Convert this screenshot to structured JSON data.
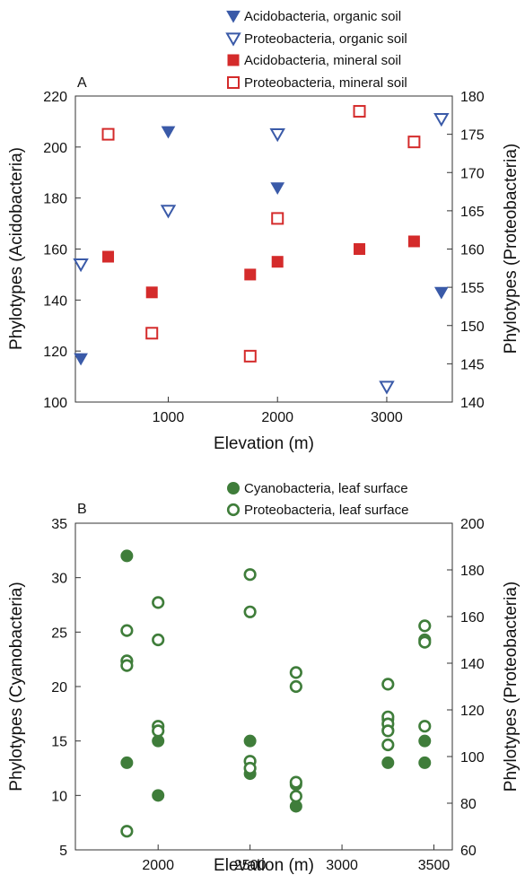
{
  "chart_data": [
    {
      "panel": "A",
      "type": "scatter",
      "xlabel": "Elevation (m)",
      "ylabel_left": "Phylotypes (Acidobacteria)",
      "ylabel_right": "Phylotypes (Proteobacteria)",
      "xlim": [
        150,
        3600
      ],
      "xticks": [
        1000,
        2000,
        3000
      ],
      "ylim_left": [
        100,
        220
      ],
      "yticks_left": [
        100,
        120,
        140,
        160,
        180,
        200,
        220
      ],
      "ylim_right": [
        140,
        180
      ],
      "yticks_right": [
        140,
        145,
        150,
        155,
        160,
        165,
        170,
        175,
        180
      ],
      "series": [
        {
          "name": "Acidobacteria, organic soil",
          "axis": "left",
          "marker": "triangle-down",
          "filled": true,
          "color": "#3a5aa8",
          "points": [
            [
              200,
              117
            ],
            [
              1000,
              206
            ],
            [
              2000,
              184
            ],
            [
              3000,
              106
            ],
            [
              3500,
              143
            ]
          ]
        },
        {
          "name": "Proteobacteria, organic soil",
          "axis": "right",
          "marker": "triangle-down",
          "filled": false,
          "color": "#3a5aa8",
          "points": [
            [
              200,
              158
            ],
            [
              1000,
              165
            ],
            [
              2000,
              175
            ],
            [
              3000,
              142
            ],
            [
              3500,
              177
            ]
          ]
        },
        {
          "name": "Acidobacteria, mineral soil",
          "axis": "left",
          "marker": "square",
          "filled": true,
          "color": "#d42b2b",
          "points": [
            [
              450,
              157
            ],
            [
              850,
              143
            ],
            [
              1750,
              150
            ],
            [
              2000,
              155
            ],
            [
              2750,
              160
            ],
            [
              3250,
              163
            ]
          ]
        },
        {
          "name": "Proteobacteria, mineral soil",
          "axis": "right",
          "marker": "square",
          "filled": false,
          "color": "#d42b2b",
          "points": [
            [
              450,
              175
            ],
            [
              850,
              149
            ],
            [
              1750,
              146
            ],
            [
              2000,
              164
            ],
            [
              2750,
              178
            ],
            [
              3250,
              174
            ]
          ]
        }
      ]
    },
    {
      "panel": "B",
      "type": "scatter",
      "xlabel": "Elevation (m)",
      "ylabel_left": "Phylotypes (Cyanobacteria)",
      "ylabel_right": "Phylotypes (Proteobacteria)",
      "xlim": [
        1550,
        3600
      ],
      "xticks": [
        2000,
        2500,
        3000,
        3500
      ],
      "ylim_left": [
        5,
        35
      ],
      "yticks_left": [
        5,
        10,
        15,
        20,
        25,
        30,
        35
      ],
      "ylim_right": [
        60,
        200
      ],
      "yticks_right": [
        60,
        80,
        100,
        120,
        140,
        160,
        180,
        200
      ],
      "series": [
        {
          "name": "Cyanobacteria, leaf surface",
          "axis": "left",
          "marker": "circle",
          "filled": true,
          "color": "#3f7d3a",
          "points": [
            [
              1830,
              32
            ],
            [
              1830,
              13
            ],
            [
              2000,
              15
            ],
            [
              2000,
              10
            ],
            [
              2500,
              15
            ],
            [
              2500,
              12
            ],
            [
              2750,
              11
            ],
            [
              2750,
              9
            ],
            [
              3250,
              17
            ],
            [
              3250,
              16
            ],
            [
              3250,
              13
            ],
            [
              3450,
              15
            ],
            [
              3450,
              13
            ]
          ]
        },
        {
          "name": "Proteobacteria, leaf surface",
          "axis": "right",
          "marker": "circle",
          "filled": false,
          "color": "#3f7d3a",
          "points": [
            [
              1830,
              154
            ],
            [
              1830,
              141
            ],
            [
              1830,
              139
            ],
            [
              1830,
              68
            ],
            [
              2000,
              166
            ],
            [
              2000,
              150
            ],
            [
              2000,
              113
            ],
            [
              2000,
              111
            ],
            [
              2500,
              178
            ],
            [
              2500,
              162
            ],
            [
              2500,
              98
            ],
            [
              2500,
              95
            ],
            [
              2750,
              136
            ],
            [
              2750,
              130
            ],
            [
              2750,
              89
            ],
            [
              2750,
              83
            ],
            [
              3250,
              131
            ],
            [
              3250,
              117
            ],
            [
              3250,
              114
            ],
            [
              3250,
              111
            ],
            [
              3250,
              105
            ],
            [
              3450,
              156
            ],
            [
              3450,
              150
            ],
            [
              3450,
              149
            ],
            [
              3450,
              113
            ]
          ]
        }
      ]
    }
  ]
}
